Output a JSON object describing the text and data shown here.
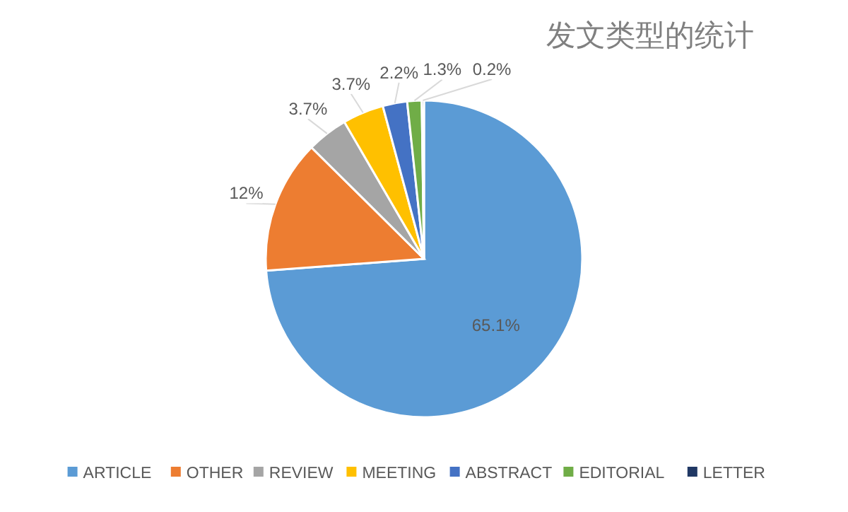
{
  "chart_data": {
    "type": "pie",
    "title": "发文类型的统计",
    "categories": [
      "ARTICLE",
      "OTHER",
      "REVIEW",
      "MEETING",
      "ABSTRACT",
      "EDITORIAL",
      "LETTER"
    ],
    "values": [
      65.1,
      12,
      3.7,
      3.7,
      2.2,
      1.3,
      0.2
    ],
    "value_labels": [
      "65.1%",
      "12%",
      "3.7%",
      "3.7%",
      "2.2%",
      "1.3%",
      "0.2%"
    ],
    "colors": [
      "#5b9bd5",
      "#ed7d31",
      "#a5a5a5",
      "#ffc000",
      "#4472c4",
      "#70ad47",
      "#203864"
    ],
    "legend": "bottom"
  }
}
